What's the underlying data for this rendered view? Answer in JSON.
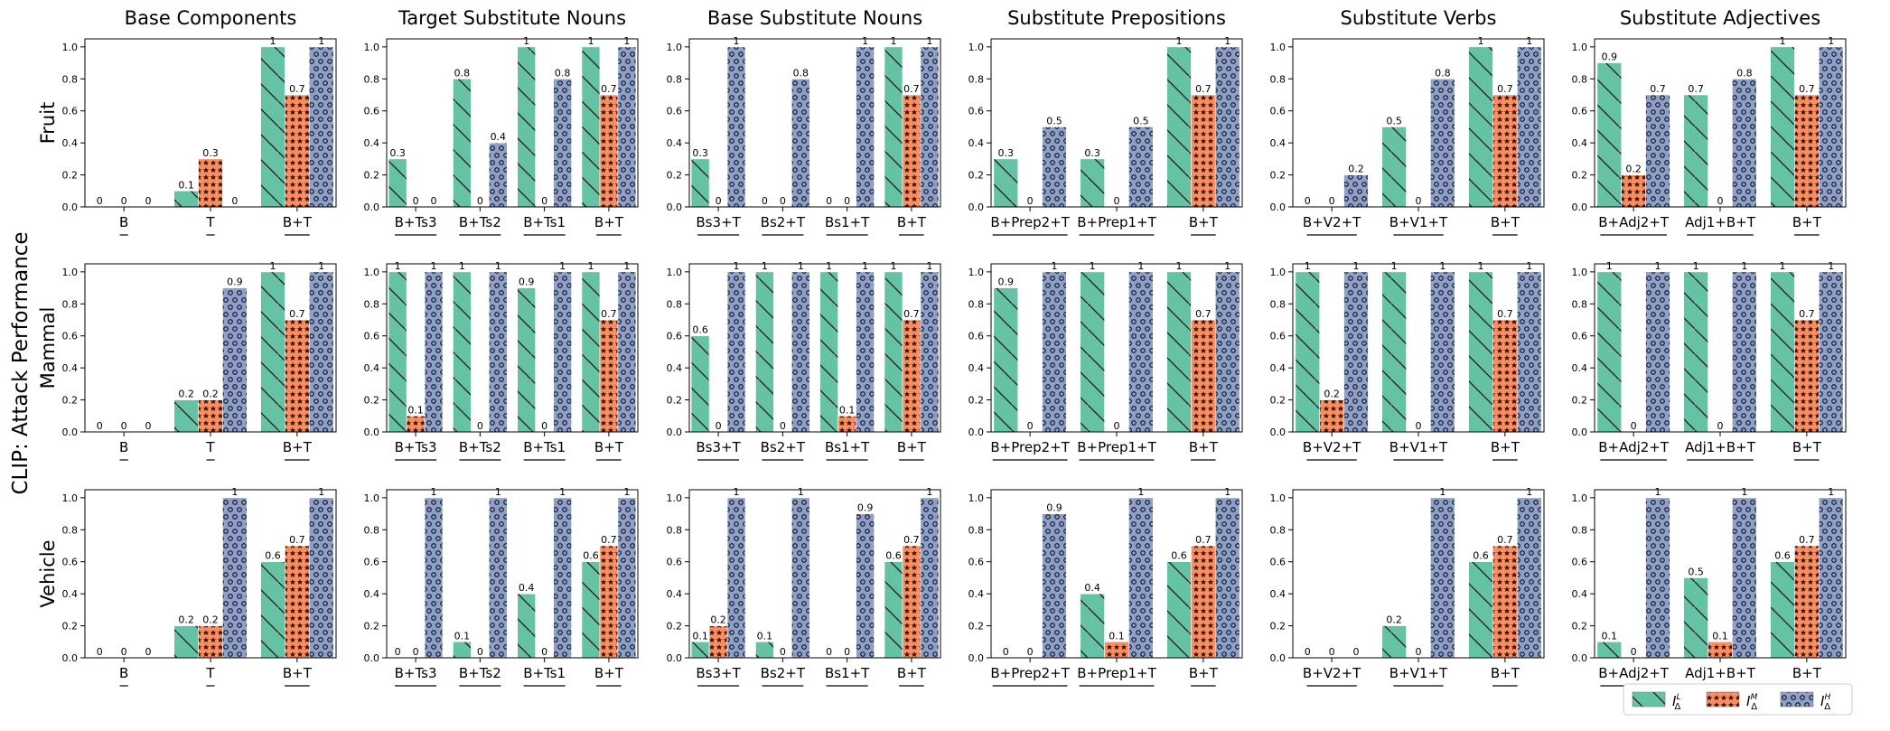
{
  "figure": {
    "ylabel": "CLIP: Attack Performance",
    "row_labels": [
      "Fruit",
      "Mammal",
      "Vehicle"
    ],
    "column_titles": [
      "Base Components",
      "Target Substitute Nouns",
      "Base Substitute Nouns",
      "Substitute Prepositions",
      "Substitute Verbs",
      "Substitute Adjectives"
    ],
    "yticks": [
      "0.0",
      "0.2",
      "0.4",
      "0.6",
      "0.8",
      "1.0"
    ],
    "legend": [
      {
        "label": "I",
        "sub": "Δ",
        "sup": "L",
        "color": "#66c2a5",
        "pattern": "hatch-diagonal"
      },
      {
        "label": "I",
        "sub": "Δ",
        "sup": "M",
        "color": "#fc8d62",
        "pattern": "hatch-stars"
      },
      {
        "label": "I",
        "sub": "Δ",
        "sup": "H",
        "color": "#8da0cb",
        "pattern": "hatch-circles"
      }
    ],
    "colors": {
      "L": "#66c2a5",
      "M": "#fc8d62",
      "H": "#8da0cb"
    }
  },
  "chart_data": [
    {
      "type": "bar",
      "row": "Fruit",
      "title": "Base Components",
      "categories": [
        "B",
        "T",
        "B+T"
      ],
      "ylim": [
        0,
        1.05
      ],
      "series": [
        {
          "name": "L",
          "values": [
            0,
            0.1,
            1
          ]
        },
        {
          "name": "M",
          "values": [
            0,
            0.3,
            0.7
          ]
        },
        {
          "name": "H",
          "values": [
            0,
            0,
            1
          ]
        }
      ]
    },
    {
      "type": "bar",
      "row": "Fruit",
      "title": "Target Substitute Nouns",
      "categories": [
        "B+Ts3",
        "B+Ts2",
        "B+Ts1",
        "B+T"
      ],
      "ylim": [
        0,
        1.05
      ],
      "series": [
        {
          "name": "L",
          "values": [
            0.3,
            0.8,
            1,
            1
          ]
        },
        {
          "name": "M",
          "values": [
            0,
            0,
            0,
            0.7
          ]
        },
        {
          "name": "H",
          "values": [
            0,
            0.4,
            0.8,
            1
          ]
        }
      ]
    },
    {
      "type": "bar",
      "row": "Fruit",
      "title": "Base Substitute Nouns",
      "categories": [
        "Bs3+T",
        "Bs2+T",
        "Bs1+T",
        "B+T"
      ],
      "ylim": [
        0,
        1.05
      ],
      "series": [
        {
          "name": "L",
          "values": [
            0.3,
            0,
            0,
            1
          ]
        },
        {
          "name": "M",
          "values": [
            0,
            0,
            0,
            0.7
          ]
        },
        {
          "name": "H",
          "values": [
            1,
            0.8,
            1,
            1
          ]
        }
      ]
    },
    {
      "type": "bar",
      "row": "Fruit",
      "title": "Substitute Prepositions",
      "categories": [
        "B+Prep2+T",
        "B+Prep1+T",
        "B+T"
      ],
      "ylim": [
        0,
        1.05
      ],
      "series": [
        {
          "name": "L",
          "values": [
            0.3,
            0.3,
            1
          ]
        },
        {
          "name": "M",
          "values": [
            0,
            0,
            0.7
          ]
        },
        {
          "name": "H",
          "values": [
            0.5,
            0.5,
            1
          ]
        }
      ]
    },
    {
      "type": "bar",
      "row": "Fruit",
      "title": "Substitute Verbs",
      "categories": [
        "B+V2+T",
        "B+V1+T",
        "B+T"
      ],
      "ylim": [
        0,
        1.05
      ],
      "series": [
        {
          "name": "L",
          "values": [
            0,
            0.5,
            1
          ]
        },
        {
          "name": "M",
          "values": [
            0,
            0,
            0.7
          ]
        },
        {
          "name": "H",
          "values": [
            0.2,
            0.8,
            1
          ]
        }
      ]
    },
    {
      "type": "bar",
      "row": "Fruit",
      "title": "Substitute Adjectives",
      "categories": [
        "B+Adj2+T",
        "Adj1+B+T",
        "B+T"
      ],
      "ylim": [
        0,
        1.05
      ],
      "series": [
        {
          "name": "L",
          "values": [
            0.9,
            0.7,
            1
          ]
        },
        {
          "name": "M",
          "values": [
            0.2,
            0,
            0.7
          ]
        },
        {
          "name": "H",
          "values": [
            0.7,
            0.8,
            1
          ]
        }
      ]
    },
    {
      "type": "bar",
      "row": "Mammal",
      "title": "Base Components",
      "categories": [
        "B",
        "T",
        "B+T"
      ],
      "ylim": [
        0,
        1.05
      ],
      "series": [
        {
          "name": "L",
          "values": [
            0,
            0.2,
            1
          ]
        },
        {
          "name": "M",
          "values": [
            0,
            0.2,
            0.7
          ]
        },
        {
          "name": "H",
          "values": [
            0,
            0.9,
            1
          ]
        }
      ]
    },
    {
      "type": "bar",
      "row": "Mammal",
      "title": "Target Substitute Nouns",
      "categories": [
        "B+Ts3",
        "B+Ts2",
        "B+Ts1",
        "B+T"
      ],
      "ylim": [
        0,
        1.05
      ],
      "series": [
        {
          "name": "L",
          "values": [
            1,
            1,
            0.9,
            1
          ]
        },
        {
          "name": "M",
          "values": [
            0.1,
            0,
            0,
            0.7
          ]
        },
        {
          "name": "H",
          "values": [
            1,
            1,
            1,
            1
          ]
        }
      ]
    },
    {
      "type": "bar",
      "row": "Mammal",
      "title": "Base Substitute Nouns",
      "categories": [
        "Bs3+T",
        "Bs2+T",
        "Bs1+T",
        "B+T"
      ],
      "ylim": [
        0,
        1.05
      ],
      "series": [
        {
          "name": "L",
          "values": [
            0.6,
            1,
            1,
            1
          ]
        },
        {
          "name": "M",
          "values": [
            0,
            0,
            0.1,
            0.7
          ]
        },
        {
          "name": "H",
          "values": [
            1,
            1,
            1,
            1
          ]
        }
      ]
    },
    {
      "type": "bar",
      "row": "Mammal",
      "title": "Substitute Prepositions",
      "categories": [
        "B+Prep2+T",
        "B+Prep1+T",
        "B+T"
      ],
      "ylim": [
        0,
        1.05
      ],
      "series": [
        {
          "name": "L",
          "values": [
            0.9,
            1,
            1
          ]
        },
        {
          "name": "M",
          "values": [
            0,
            0,
            0.7
          ]
        },
        {
          "name": "H",
          "values": [
            1,
            1,
            1
          ]
        }
      ]
    },
    {
      "type": "bar",
      "row": "Mammal",
      "title": "Substitute Verbs",
      "categories": [
        "B+V2+T",
        "B+V1+T",
        "B+T"
      ],
      "ylim": [
        0,
        1.05
      ],
      "series": [
        {
          "name": "L",
          "values": [
            1,
            1,
            1
          ]
        },
        {
          "name": "M",
          "values": [
            0.2,
            0,
            0.7
          ]
        },
        {
          "name": "H",
          "values": [
            1,
            1,
            1
          ]
        }
      ]
    },
    {
      "type": "bar",
      "row": "Mammal",
      "title": "Substitute Adjectives",
      "categories": [
        "B+Adj2+T",
        "Adj1+B+T",
        "B+T"
      ],
      "ylim": [
        0,
        1.05
      ],
      "series": [
        {
          "name": "L",
          "values": [
            1,
            1,
            1
          ]
        },
        {
          "name": "M",
          "values": [
            0,
            0,
            0.7
          ]
        },
        {
          "name": "H",
          "values": [
            1,
            1,
            1
          ]
        }
      ]
    },
    {
      "type": "bar",
      "row": "Vehicle",
      "title": "Base Components",
      "categories": [
        "B",
        "T",
        "B+T"
      ],
      "ylim": [
        0,
        1.05
      ],
      "series": [
        {
          "name": "L",
          "values": [
            0,
            0.2,
            0.6
          ]
        },
        {
          "name": "M",
          "values": [
            0,
            0.2,
            0.7
          ]
        },
        {
          "name": "H",
          "values": [
            0,
            1,
            1
          ]
        }
      ]
    },
    {
      "type": "bar",
      "row": "Vehicle",
      "title": "Target Substitute Nouns",
      "categories": [
        "B+Ts3",
        "B+Ts2",
        "B+Ts1",
        "B+T"
      ],
      "ylim": [
        0,
        1.05
      ],
      "series": [
        {
          "name": "L",
          "values": [
            0,
            0.1,
            0.4,
            0.6
          ]
        },
        {
          "name": "M",
          "values": [
            0,
            0,
            0,
            0.7
          ]
        },
        {
          "name": "H",
          "values": [
            1,
            1,
            1,
            1
          ]
        }
      ]
    },
    {
      "type": "bar",
      "row": "Vehicle",
      "title": "Base Substitute Nouns",
      "categories": [
        "Bs3+T",
        "Bs2+T",
        "Bs1+T",
        "B+T"
      ],
      "ylim": [
        0,
        1.05
      ],
      "series": [
        {
          "name": "L",
          "values": [
            0.1,
            0.1,
            0,
            0.6
          ]
        },
        {
          "name": "M",
          "values": [
            0.2,
            0,
            0,
            0.7
          ]
        },
        {
          "name": "H",
          "values": [
            1,
            1,
            0.9,
            1
          ]
        }
      ]
    },
    {
      "type": "bar",
      "row": "Vehicle",
      "title": "Substitute Prepositions",
      "categories": [
        "B+Prep2+T",
        "B+Prep1+T",
        "B+T"
      ],
      "ylim": [
        0,
        1.05
      ],
      "series": [
        {
          "name": "L",
          "values": [
            0,
            0.4,
            0.6
          ]
        },
        {
          "name": "M",
          "values": [
            0,
            0.1,
            0.7
          ]
        },
        {
          "name": "H",
          "values": [
            0.9,
            1,
            1
          ]
        }
      ]
    },
    {
      "type": "bar",
      "row": "Vehicle",
      "title": "Substitute Verbs",
      "categories": [
        "B+V2+T",
        "B+V1+T",
        "B+T"
      ],
      "ylim": [
        0,
        1.05
      ],
      "series": [
        {
          "name": "L",
          "values": [
            0,
            0.2,
            0.6
          ]
        },
        {
          "name": "M",
          "values": [
            0,
            0,
            0.7
          ]
        },
        {
          "name": "H",
          "values": [
            0,
            1,
            1
          ]
        }
      ]
    },
    {
      "type": "bar",
      "row": "Vehicle",
      "title": "Substitute Adjectives",
      "categories": [
        "B+Adj2+T",
        "Adj1+B+T",
        "B+T"
      ],
      "ylim": [
        0,
        1.05
      ],
      "series": [
        {
          "name": "L",
          "values": [
            0.1,
            0.5,
            0.6
          ]
        },
        {
          "name": "M",
          "values": [
            0,
            0.1,
            0.7
          ]
        },
        {
          "name": "H",
          "values": [
            1,
            1,
            1
          ]
        }
      ]
    }
  ]
}
